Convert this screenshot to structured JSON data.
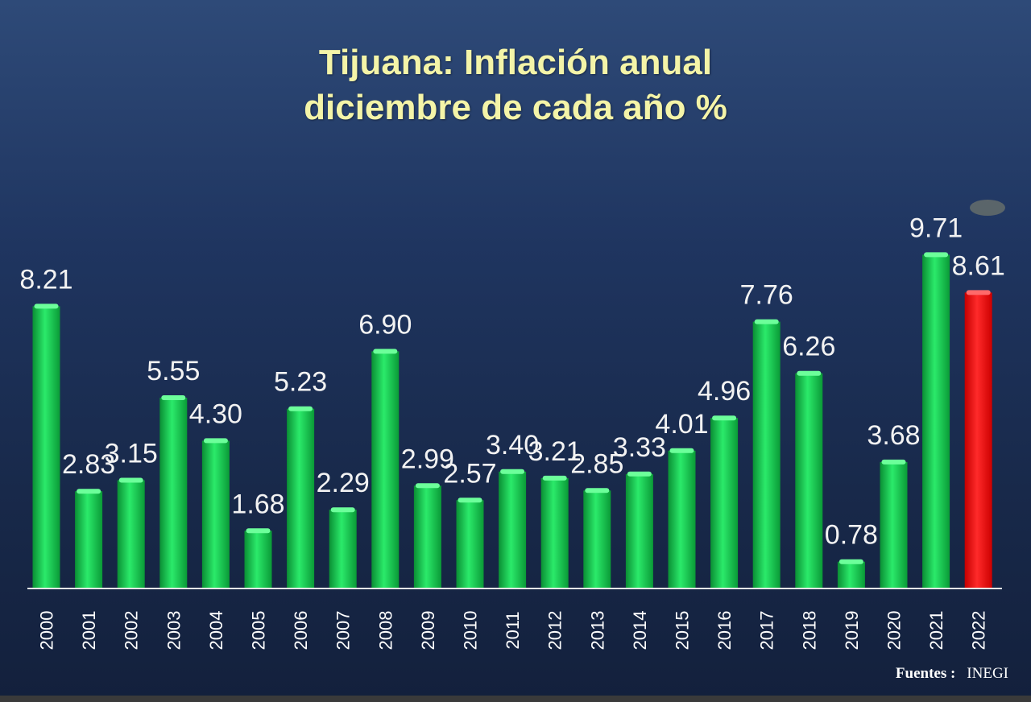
{
  "chart_data": {
    "type": "bar",
    "title_line1": "Tijuana: Inflación anual",
    "title_line2": "diciembre de cada año %",
    "categories": [
      "2000",
      "2001",
      "2002",
      "2003",
      "2004",
      "2005",
      "2006",
      "2007",
      "2008",
      "2009",
      "2010",
      "2011",
      "2012",
      "2013",
      "2014",
      "2015",
      "2016",
      "2017",
      "2018",
      "2019",
      "2020",
      "2021",
      "2022"
    ],
    "values": [
      8.21,
      2.83,
      3.15,
      5.55,
      4.3,
      1.68,
      5.23,
      2.29,
      6.9,
      2.99,
      2.57,
      3.4,
      3.21,
      2.85,
      3.33,
      4.01,
      4.96,
      7.76,
      6.26,
      0.78,
      3.68,
      9.71,
      8.61
    ],
    "value_labels": [
      "8.21",
      "2.83",
      "3.15",
      "5.55",
      "4.30",
      "1.68",
      "5.23",
      "2.29",
      "6.90",
      "2.99",
      "2.57",
      "3.40",
      "3.21",
      "2.85",
      "3.33",
      "4.01",
      "4.96",
      "7.76",
      "6.26",
      "0.78",
      "3.68",
      "9.71",
      "8.61"
    ],
    "highlight_index": 22,
    "bar_color": "#12c44a",
    "highlight_color": "#ff0a0a",
    "ylim": [
      0,
      10
    ]
  },
  "source_label": "Fuentes :",
  "source_name": "INEGI"
}
